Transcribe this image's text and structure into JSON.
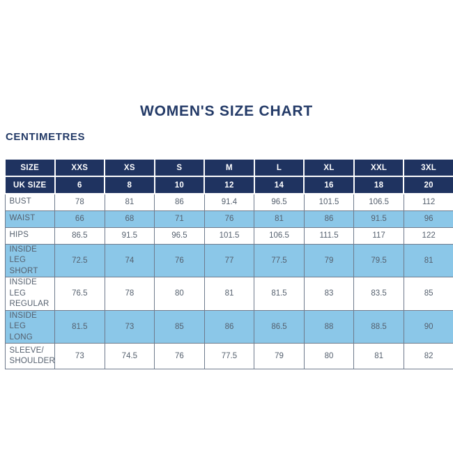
{
  "page": {
    "title": "WOMEN'S SIZE CHART",
    "unit_label": "CENTIMETRES"
  },
  "colors": {
    "header_navy": "#1F3360",
    "row_light_blue": "#8BC7E8",
    "title_navy": "#233A67",
    "body_text": "#55606E",
    "grid_border": "#6E7A8C",
    "header_text": "#FFFFFF"
  },
  "chart_data": {
    "type": "table",
    "title": "WOMEN'S SIZE CHART",
    "unit": "CENTIMETRES",
    "columns": [
      "SIZE",
      "XXS",
      "XS",
      "S",
      "M",
      "L",
      "XL",
      "XXL",
      "3XL"
    ],
    "uk_size_row": {
      "label": "UK SIZE",
      "values": [
        "6",
        "8",
        "10",
        "12",
        "14",
        "16",
        "18",
        "20"
      ]
    },
    "rows": [
      {
        "label": "BUST",
        "label_lines": [
          "BUST"
        ],
        "values": [
          "78",
          "81",
          "86",
          "91.4",
          "96.5",
          "101.5",
          "106.5",
          "112"
        ]
      },
      {
        "label": "WAIST",
        "label_lines": [
          "WAIST"
        ],
        "values": [
          "66",
          "68",
          "71",
          "76",
          "81",
          "86",
          "91.5",
          "96"
        ]
      },
      {
        "label": "HIPS",
        "label_lines": [
          "HIPS"
        ],
        "values": [
          "86.5",
          "91.5",
          "96.5",
          "101.5",
          "106.5",
          "111.5",
          "117",
          "122"
        ]
      },
      {
        "label": "INSIDE LEG SHORT",
        "label_lines": [
          "INSIDE LEG",
          "SHORT"
        ],
        "values": [
          "72.5",
          "74",
          "76",
          "77",
          "77.5",
          "79",
          "79.5",
          "81"
        ]
      },
      {
        "label": "INSIDE LEG REGULAR",
        "label_lines": [
          "INSIDE LEG",
          "REGULAR"
        ],
        "values": [
          "76.5",
          "78",
          "80",
          "81",
          "81.5",
          "83",
          "83.5",
          "85"
        ]
      },
      {
        "label": "INSIDE LEG LONG",
        "label_lines": [
          "INSIDE LEG",
          "LONG"
        ],
        "values": [
          "81.5",
          "73",
          "85",
          "86",
          "86.5",
          "88",
          "88.5",
          "90"
        ]
      },
      {
        "label": "SLEEVE/SHOULDER",
        "label_lines": [
          "SLEEVE/",
          "SHOULDER"
        ],
        "values": [
          "73",
          "74.5",
          "76",
          "77.5",
          "79",
          "80",
          "81",
          "82"
        ]
      }
    ]
  }
}
